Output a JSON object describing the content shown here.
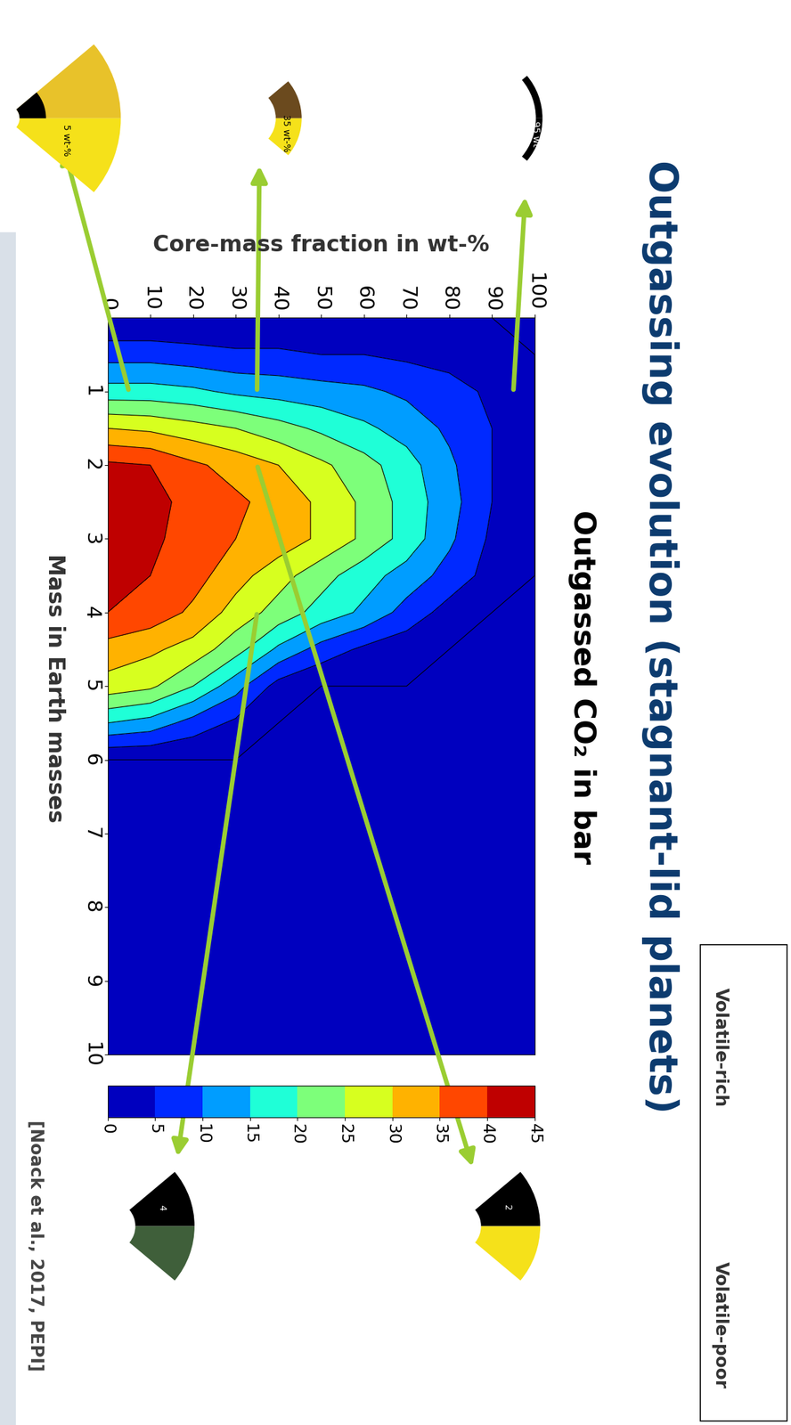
{
  "slide_title": "Outgassing evolution (stagnant-lid planets)",
  "source": "[Noack et al., 2017, PEPI]",
  "scale_labels": {
    "top": "Volatile-rich",
    "bottom": "Volatile-poor"
  },
  "chart_data": {
    "type": "contour",
    "title": "Outgassed CO₂ in bar",
    "x_label": "Core-mass fraction in wt-%",
    "y_label": "Mass in Earth masses",
    "color": "jet",
    "x": [
      0,
      10,
      20,
      30,
      40,
      50,
      60,
      70,
      80,
      90,
      100
    ],
    "y": [
      0,
      0.5,
      1,
      1.5,
      2,
      2.5,
      3,
      3.5,
      4,
      4.5,
      5,
      5.5,
      6,
      7,
      8,
      9,
      10
    ],
    "z": [
      [
        0,
        0,
        0,
        0,
        0,
        0,
        0,
        0,
        0,
        0,
        0
      ],
      [
        8,
        8,
        7,
        6,
        6,
        5,
        5,
        4,
        3,
        2,
        0
      ],
      [
        17,
        17,
        16,
        14,
        13,
        12,
        11,
        9,
        7,
        4,
        0
      ],
      [
        30,
        29,
        27,
        25,
        22,
        19,
        16,
        13,
        9,
        5,
        0
      ],
      [
        41,
        40,
        36,
        33,
        30,
        26,
        22,
        17,
        11,
        5,
        0
      ],
      [
        44,
        42,
        38,
        36,
        33,
        29,
        24,
        18,
        12,
        5,
        0
      ],
      [
        44,
        41,
        38,
        35,
        33,
        29,
        24,
        18,
        11,
        4,
        0
      ],
      [
        42,
        40,
        37,
        32,
        27,
        22,
        17,
        13,
        8,
        3,
        0
      ],
      [
        40,
        38,
        34,
        28,
        23,
        18,
        14,
        8,
        3,
        0,
        0
      ],
      [
        33,
        31,
        28,
        22,
        14,
        8,
        4,
        2,
        0,
        0,
        0
      ],
      [
        28,
        26,
        20,
        12,
        3,
        0,
        0,
        0,
        0,
        0,
        0
      ],
      [
        15,
        13,
        8,
        4,
        0,
        0,
        0,
        0,
        0,
        0,
        0
      ],
      [
        0,
        0,
        0,
        0,
        0,
        0,
        0,
        0,
        0,
        0,
        0
      ],
      [
        0,
        0,
        0,
        0,
        0,
        0,
        0,
        0,
        0,
        0,
        0
      ],
      [
        0,
        0,
        0,
        0,
        0,
        0,
        0,
        0,
        0,
        0,
        0
      ],
      [
        0,
        0,
        0,
        0,
        0,
        0,
        0,
        0,
        0,
        0,
        0
      ],
      [
        0,
        0,
        0,
        0,
        0,
        0,
        0,
        0,
        0,
        0,
        0
      ]
    ],
    "xlim": [
      0,
      100
    ],
    "xticks": [
      0,
      10,
      20,
      30,
      40,
      50,
      60,
      70,
      80,
      90,
      100
    ],
    "ylim": [
      0,
      10
    ],
    "yticks": [
      1,
      2,
      3,
      4,
      5,
      6,
      7,
      8,
      9,
      10
    ],
    "colorbar": {
      "range": [
        0,
        45
      ],
      "ticks": [
        0,
        5,
        10,
        15,
        20,
        25,
        30,
        35,
        40,
        45
      ]
    },
    "annotations": [
      {
        "text": "95 wt-%",
        "core_mass_fraction": 95,
        "mass": 1
      },
      {
        "text": "35 wt-%",
        "core_mass_fraction": 35,
        "mass": 1
      },
      {
        "text": "5 wt-%",
        "core_mass_fraction": 5,
        "mass": 1
      },
      {
        "text": "2",
        "core_mass_fraction": 35,
        "mass": 2
      },
      {
        "text": "4",
        "core_mass_fraction": 35,
        "mass": 4
      }
    ]
  }
}
